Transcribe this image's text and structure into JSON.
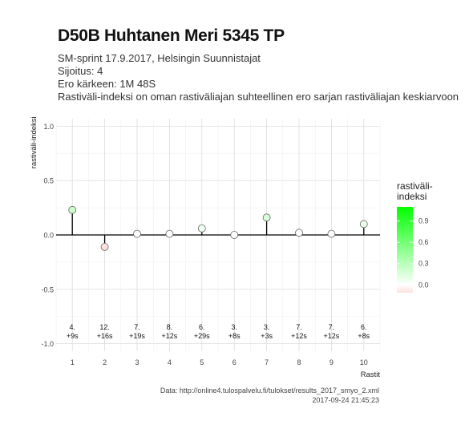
{
  "header": {
    "title": "D50B Huhtanen Meri 5345 TP",
    "subtitle_lines": [
      "SM-sprint 17.9.2017, Helsingin Suunnistajat",
      "Sijoitus: 4",
      "Ero kärkeen: 1M 48S",
      "Rastiväli-indeksi on oman rastiväliajan suhteellinen ero sarjan rastiväliajan keskiarvoon"
    ]
  },
  "caption": {
    "source": "Data: http://online4.tulospalvelu.fi/tulokset/results_2017_smyo_2.xml",
    "timestamp": "2017-09-24 21:45:23"
  },
  "chart_data": {
    "type": "scatter",
    "xlabel": "Rastit",
    "ylabel": "rastiväli-indeksi",
    "x": [
      1,
      2,
      3,
      4,
      5,
      6,
      7,
      8,
      9,
      10
    ],
    "x_ticks": [
      "1",
      "2",
      "3",
      "4",
      "5",
      "6",
      "7",
      "8",
      "9",
      "10"
    ],
    "y": [
      0.23,
      -0.11,
      0.01,
      0.01,
      0.06,
      0.0,
      0.16,
      0.02,
      0.01,
      0.1
    ],
    "ylim": [
      -1.0,
      1.0
    ],
    "y_ticks": [
      -1.0,
      -0.5,
      0.0,
      0.5,
      1.0
    ],
    "y_tick_labels": [
      "-1.0",
      "-0.5",
      "0.0",
      "0.5",
      "1.0"
    ],
    "point_labels": [
      {
        "rank": "4.",
        "diff": "+9s"
      },
      {
        "rank": "12.",
        "diff": "+16s"
      },
      {
        "rank": "7.",
        "diff": "+19s"
      },
      {
        "rank": "8.",
        "diff": "+12s"
      },
      {
        "rank": "6.",
        "diff": "+29s"
      },
      {
        "rank": "3.",
        "diff": "+8s"
      },
      {
        "rank": "3.",
        "diff": "+3s"
      },
      {
        "rank": "7.",
        "diff": "+12s"
      },
      {
        "rank": "7.",
        "diff": "+12s"
      },
      {
        "rank": "6.",
        "diff": "+8s"
      }
    ],
    "grid": true,
    "legend": {
      "title": "rastiväli-\nindeksi",
      "placement": "right",
      "ticks": [
        "0.0",
        "0.3",
        "0.6",
        "0.9"
      ],
      "tick_values": [
        0.0,
        0.3,
        0.6,
        0.9
      ],
      "range": [
        -0.11,
        1.1
      ],
      "color_low": "#fde0dd",
      "color_zero": "#ffffff",
      "color_high": "#00ff00"
    }
  }
}
